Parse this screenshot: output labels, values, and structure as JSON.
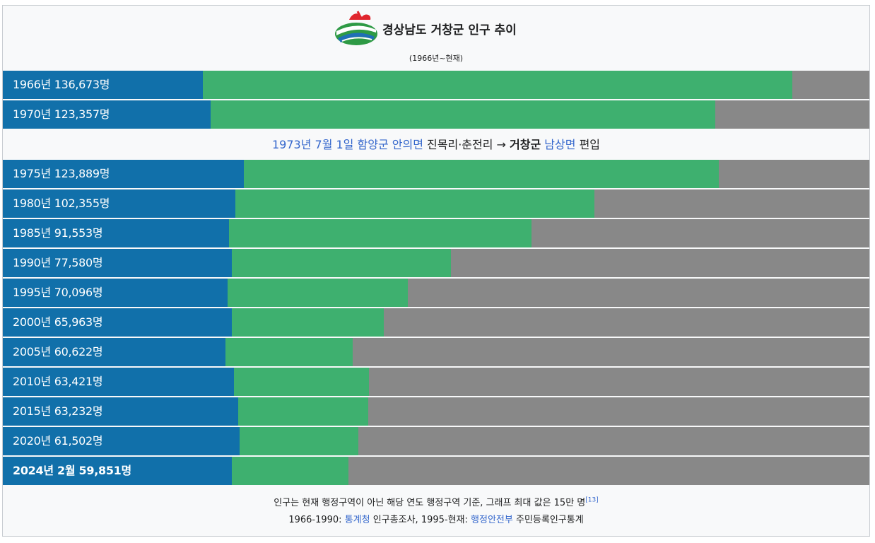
{
  "header": {
    "title": "경상남도 거창군 인구 추이",
    "subtitle": "(1966년~현재)",
    "logo_icon": "geochang-county-emblem-icon"
  },
  "chart_data": {
    "type": "bar",
    "orientation": "horizontal",
    "title": "경상남도 거창군 인구 추이",
    "subtitle": "(1966년~현재)",
    "xlim": [
      0,
      150000
    ],
    "categories": [
      "1966년",
      "1970년",
      "1975년",
      "1980년",
      "1985년",
      "1990년",
      "1995년",
      "2000년",
      "2005년",
      "2010년",
      "2015년",
      "2020년",
      "2024년 2월"
    ],
    "values": [
      136673,
      123357,
      123889,
      102355,
      91553,
      77580,
      70096,
      65963,
      60622,
      63421,
      63232,
      61502,
      59851
    ],
    "labels": [
      "1966년 136,673명",
      "1970년 123,357명",
      "1975년 123,889명",
      "1980년 102,355명",
      "1985년 91,553명",
      "1990년 77,580명",
      "1995년 70,096명",
      "2000년 65,963명",
      "2005년 60,622명",
      "2010년 63,421명",
      "2015년 63,232명",
      "2020년 61,502명",
      "2024년 2월 59,851명"
    ],
    "bold_last": true,
    "colors": {
      "label_bg": "#1170aa",
      "bar": "#3eb06f",
      "track": "#888888"
    }
  },
  "note": {
    "text_date": "1973년 7월 1일",
    "text_county": "함양군",
    "text_town": "안의면",
    "text_villages": "진목리·춘전리 →",
    "text_target_county": "거창군",
    "text_target_town": "남상면",
    "text_end": "편입"
  },
  "footer": {
    "line1": "인구는 현재 행정구역이 아닌 해당 연도 행정구역 기준, 그래프 최대 값은 15만 명",
    "line1_ref": "[13]",
    "line2_a": "1966-1990:",
    "line2_link1": "통계청",
    "line2_b": "인구총조사, 1995-현재:",
    "line2_link2": "행정안전부",
    "line2_c": "주민등록인구통계"
  }
}
